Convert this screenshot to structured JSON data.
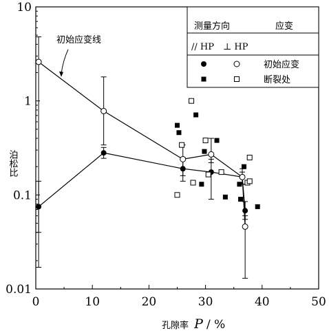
{
  "chart_data": {
    "type": "scatter",
    "xlabel_prefix": "孔隙率",
    "xlabel_symbol": "P",
    "xlabel_unit": " / %",
    "ylabel": "泊松比",
    "xlim": [
      0,
      50
    ],
    "ylim": [
      0.01,
      10
    ],
    "yscale": "log",
    "x_ticks": [
      0,
      10,
      20,
      30,
      40,
      50
    ],
    "y_ticks": [
      0.01,
      0.1,
      1,
      10
    ],
    "y_tick_labels": [
      "0.01",
      "0.1",
      "1",
      "10"
    ],
    "annotation": "初始应变线",
    "legend": {
      "header_left": "测量方向",
      "header_right": "应变",
      "dir_parallel": "// HP",
      "dir_perp": "⊥ HP",
      "row1_label": "初始应变",
      "row2_label": "断裂处",
      "placement": "top-right"
    },
    "series": [
      {
        "marker": "circle-filled",
        "points": [
          [
            0.5,
            0.075
          ],
          [
            12,
            0.28
          ],
          [
            26,
            0.19
          ],
          [
            31,
            0.175
          ],
          [
            36.5,
            0.155
          ],
          [
            37,
            0.068
          ]
        ],
        "error_low": [
          0.017,
          0.245,
          0.14,
          0.09,
          0.13,
          0.055
        ],
        "error_high": [
          0.14,
          0.32,
          0.25,
          0.24,
          0.175,
          0.085
        ]
      },
      {
        "marker": "circle-open",
        "points": [
          [
            0.5,
            2.6
          ],
          [
            12,
            0.78
          ],
          [
            26,
            0.24
          ],
          [
            31,
            0.27
          ],
          [
            36.5,
            0.155
          ],
          [
            37,
            0.046
          ]
        ],
        "error_low": [
          0.04,
          0.34,
          0.16,
          0.22,
          0.13,
          0.013
        ],
        "error_high": [
          4.8,
          1.8,
          0.34,
          0.4,
          0.19,
          0.06
        ]
      },
      {
        "marker": "square-filled",
        "points": [
          [
            25,
            0.55
          ],
          [
            25.3,
            0.46
          ],
          [
            28.3,
            0.71
          ],
          [
            29.8,
            0.29
          ],
          [
            32,
            0.38
          ],
          [
            29.3,
            0.13
          ],
          [
            33.5,
            0.095
          ],
          [
            36,
            0.13
          ],
          [
            36.2,
            0.09
          ],
          [
            36.8,
            0.2
          ],
          [
            39.2,
            0.075
          ]
        ]
      },
      {
        "marker": "square-open",
        "points": [
          [
            27.5,
            1.0
          ],
          [
            25.8,
            0.34
          ],
          [
            30,
            0.38
          ],
          [
            27.8,
            0.135
          ],
          [
            25,
            0.1
          ],
          [
            30.5,
            0.165
          ],
          [
            32.8,
            0.175
          ],
          [
            37.4,
            0.135
          ],
          [
            37.8,
            0.25
          ],
          [
            37.8,
            0.14
          ]
        ]
      }
    ],
    "lines": [
      {
        "marker": "circle-filled",
        "x": [
          0.5,
          12,
          26,
          31,
          36.5,
          37
        ],
        "y": [
          0.075,
          0.28,
          0.19,
          0.175,
          0.155,
          0.068
        ]
      },
      {
        "marker": "circle-open",
        "x": [
          0.5,
          12,
          26,
          31,
          36.5,
          37
        ],
        "y": [
          2.6,
          0.78,
          0.24,
          0.27,
          0.155,
          0.046
        ]
      }
    ]
  }
}
